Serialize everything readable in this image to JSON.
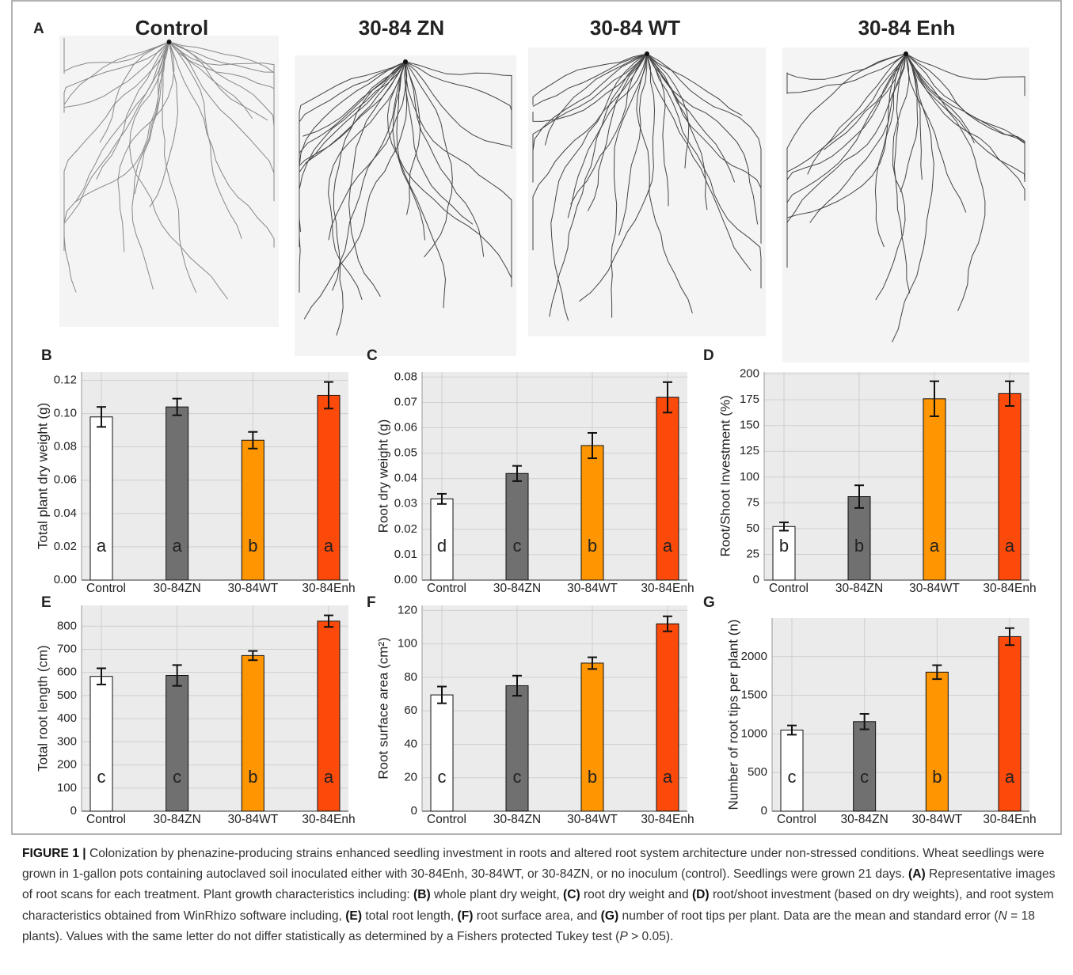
{
  "figure": {
    "panel_a": {
      "label": "A",
      "titles": [
        "Control",
        "30-84 ZN",
        "30-84 WT",
        "30-84 Enh"
      ]
    },
    "caption": [
      {
        "text": "FIGURE 1 |",
        "bold": true
      },
      {
        "text": " Colonization by phenazine-producing strains enhanced seedling investment in roots and altered root system architecture under non-stressed conditions. Wheat seedlings were grown in 1-gallon pots containing autoclaved soil inoculated either with 30-84Enh, 30-84WT, or 30-84ZN, or no inoculum (control). Seedlings were grown 21 days. "
      },
      {
        "text": "(A)",
        "bold": true
      },
      {
        "text": " Representative images of root scans for each treatment. Plant growth characteristics including: "
      },
      {
        "text": "(B)",
        "bold": true
      },
      {
        "text": " whole plant dry weight, "
      },
      {
        "text": "(C)",
        "bold": true
      },
      {
        "text": " root dry weight and "
      },
      {
        "text": "(D)",
        "bold": true
      },
      {
        "text": " root/shoot investment (based on dry weights), and root system characteristics obtained from WinRhizo software including, "
      },
      {
        "text": "(E)",
        "bold": true
      },
      {
        "text": " total root length, "
      },
      {
        "text": "(F)",
        "bold": true
      },
      {
        "text": " root surface area, and "
      },
      {
        "text": "(G)",
        "bold": true
      },
      {
        "text": " number of root tips per plant. Data are the mean and standard error ("
      },
      {
        "text": "N",
        "italic": true
      },
      {
        "text": " = 18 plants). Values with the same letter do not differ statistically as determined by a Fishers protected Tukey test ("
      },
      {
        "text": "P",
        "italic": true
      },
      {
        "text": " > 0.05)."
      }
    ]
  },
  "chart_data": [
    {
      "type": "bar",
      "panel": "B",
      "y_label": "Total plant dry weight (g)",
      "categories": [
        "Control",
        "30-84ZN",
        "30-84WT",
        "30-84Enh"
      ],
      "colors": [
        "#ffffff",
        "#707070",
        "#ff9500",
        "#fb4a0a"
      ],
      "values": [
        0.098,
        0.104,
        0.084,
        0.111
      ],
      "errors": [
        0.006,
        0.005,
        0.005,
        0.008
      ],
      "letters": [
        "a",
        "a",
        "b",
        "a"
      ],
      "ylim": [
        0,
        0.125
      ],
      "yticks": [
        {
          "value": 0,
          "label": "0.00"
        },
        0.02,
        0.04,
        0.06,
        0.08,
        {
          "value": 0.1,
          "label": "0.10"
        },
        0.12
      ],
      "grid": true
    },
    {
      "type": "bar",
      "panel": "C",
      "y_label": "Root dry weight (g)",
      "categories": [
        "Control",
        "30-84ZN",
        "30-84WT",
        "30-84Enh"
      ],
      "colors": [
        "#ffffff",
        "#707070",
        "#ff9500",
        "#fb4a0a"
      ],
      "values": [
        0.032,
        0.042,
        0.053,
        0.072
      ],
      "errors": [
        0.002,
        0.003,
        0.005,
        0.006
      ],
      "letters": [
        "d",
        "c",
        "b",
        "a"
      ],
      "ylim": [
        0,
        0.082
      ],
      "yticks": [
        {
          "value": 0,
          "label": "0.00"
        },
        0.01,
        0.02,
        0.03,
        0.04,
        0.05,
        0.06,
        0.07,
        0.08
      ],
      "grid": true
    },
    {
      "type": "bar",
      "panel": "D",
      "y_label": "Root/Shoot Investment (%)",
      "categories": [
        "Control",
        "30-84ZN",
        "30-84WT",
        "30-84Enh"
      ],
      "colors": [
        "#ffffff",
        "#707070",
        "#ff9500",
        "#fb4a0a"
      ],
      "values": [
        52,
        81,
        176,
        181
      ],
      "errors": [
        4,
        11,
        17,
        12
      ],
      "letters": [
        "b",
        "b",
        "a",
        "a"
      ],
      "ylim": [
        0,
        202
      ],
      "yticks": [
        0,
        25,
        50,
        75,
        100,
        125,
        150,
        175,
        200
      ],
      "grid": true
    },
    {
      "type": "bar",
      "panel": "E",
      "y_label": "Total root length (cm)",
      "categories": [
        "Control",
        "30-84ZN",
        "30-84WT",
        "30-84Enh"
      ],
      "colors": [
        "#ffffff",
        "#707070",
        "#ff9500",
        "#fb4a0a"
      ],
      "values": [
        583,
        587,
        673,
        822
      ],
      "errors": [
        35,
        45,
        20,
        25
      ],
      "letters": [
        "c",
        "c",
        "b",
        "a"
      ],
      "ylim": [
        0,
        890
      ],
      "yticks": [
        0,
        100,
        200,
        300,
        400,
        500,
        600,
        700,
        800
      ],
      "grid": true
    },
    {
      "type": "bar",
      "panel": "F",
      "y_label": "Root surface area (cm²)",
      "categories": [
        "Control",
        "30-84ZN",
        "30-84WT",
        "30-84Enh"
      ],
      "colors": [
        "#ffffff",
        "#707070",
        "#ff9500",
        "#fb4a0a"
      ],
      "values": [
        69.5,
        75,
        88.5,
        112
      ],
      "errors": [
        5,
        6,
        3.5,
        4.5
      ],
      "letters": [
        "c",
        "c",
        "b",
        "a"
      ],
      "ylim": [
        0,
        123
      ],
      "yticks": [
        0,
        20,
        40,
        60,
        80,
        100,
        120
      ],
      "grid": true
    },
    {
      "type": "bar",
      "panel": "G",
      "y_label": "Number of root tips per plant (n)",
      "categories": [
        "Control",
        "30-84ZN",
        "30-84WT",
        "30-84Enh"
      ],
      "colors": [
        "#ffffff",
        "#707070",
        "#ff9500",
        "#fb4a0a"
      ],
      "values": [
        1050,
        1160,
        1800,
        2260
      ],
      "errors": [
        60,
        100,
        90,
        110
      ],
      "letters": [
        "c",
        "c",
        "b",
        "a"
      ],
      "ylim": [
        0,
        2500
      ],
      "yticks": [
        0,
        500,
        1000,
        1500,
        2000
      ],
      "grid": true
    }
  ]
}
